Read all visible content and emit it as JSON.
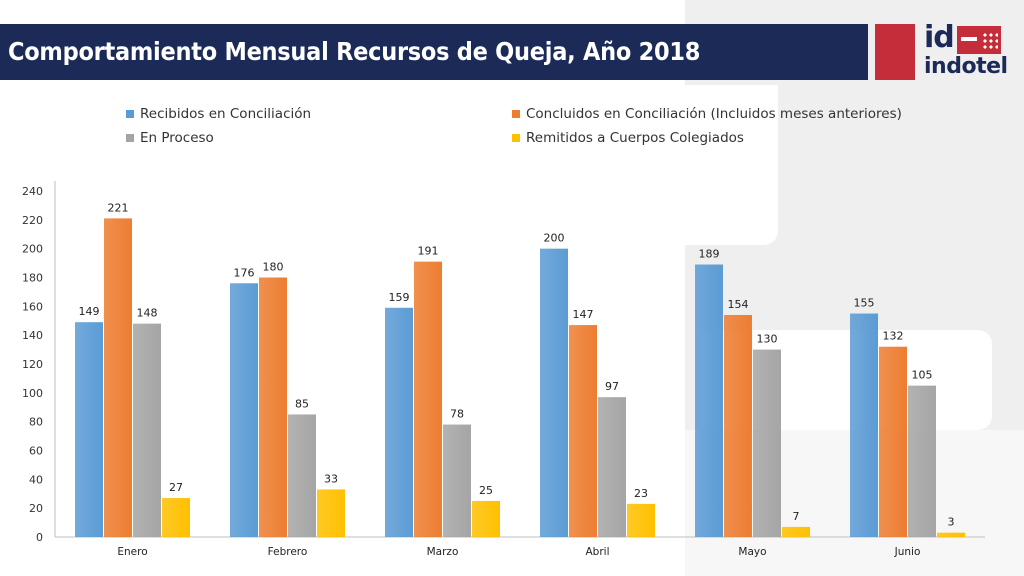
{
  "header": {
    "title": "Comportamiento Mensual Recursos de Queja, Año 2018"
  },
  "logo": {
    "mark": "id",
    "wordmark": "indotel"
  },
  "colors": {
    "header_band": "#1b2a57",
    "brand_red": "#c62d3a"
  },
  "chart_data": {
    "type": "bar",
    "categories": [
      "Enero",
      "Febrero",
      "Marzo",
      "Abril",
      "Mayo",
      "Junio"
    ],
    "series": [
      {
        "name": "Recibidos en Conciliación",
        "color": "#5b9bd5",
        "values": [
          149,
          176,
          159,
          200,
          189,
          155
        ]
      },
      {
        "name": "Concluidos en Conciliación (Incluidos meses anteriores)",
        "color": "#ed7d31",
        "values": [
          221,
          180,
          191,
          147,
          154,
          132
        ]
      },
      {
        "name": "En Proceso",
        "color": "#a5a5a5",
        "values": [
          148,
          85,
          78,
          97,
          130,
          105
        ]
      },
      {
        "name": "Remitidos a Cuerpos Colegiados",
        "color": "#ffc000",
        "values": [
          27,
          33,
          25,
          23,
          7,
          3
        ]
      }
    ],
    "yticks": [
      0,
      20,
      40,
      60,
      80,
      100,
      120,
      140,
      160,
      180,
      200,
      220,
      240
    ],
    "ylim": [
      0,
      240
    ],
    "grid": false,
    "legend_position": "top",
    "data_labels": true
  }
}
